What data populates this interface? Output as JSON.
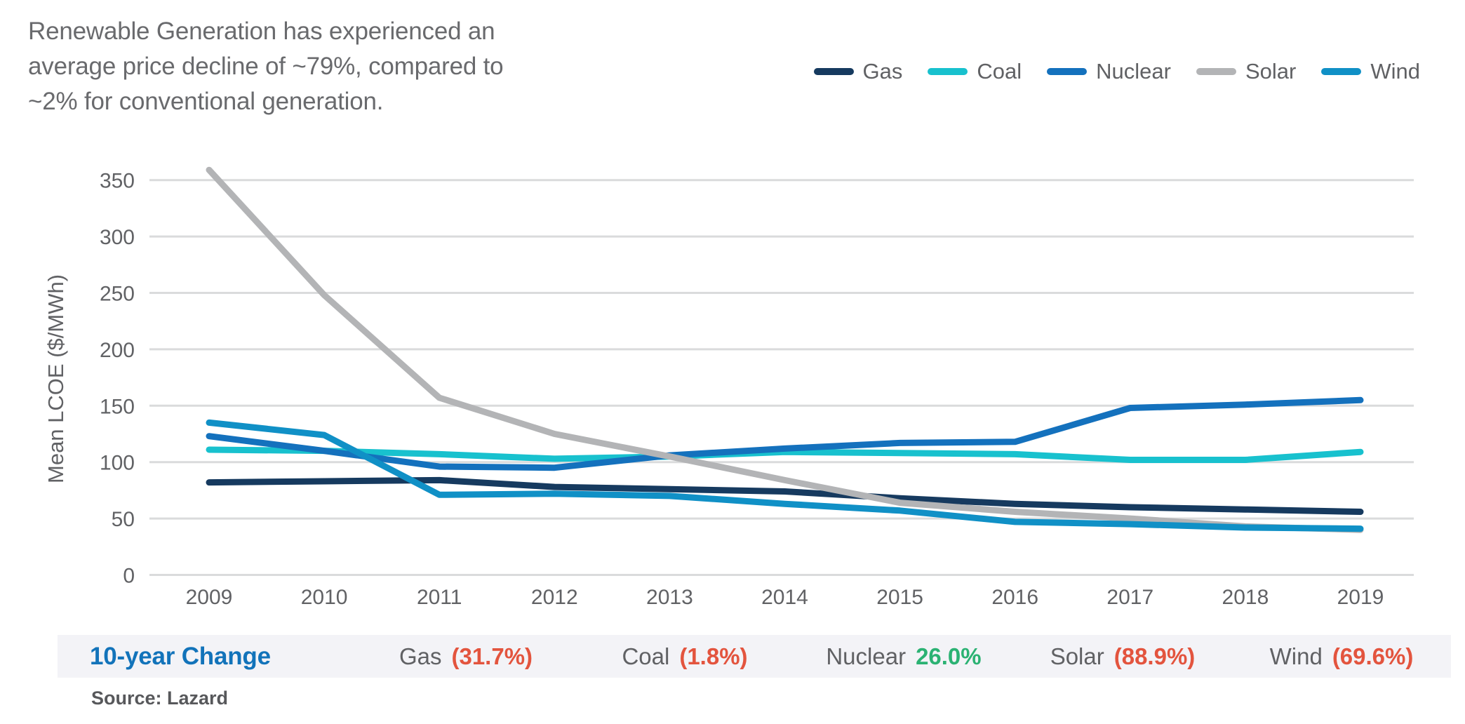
{
  "headline": {
    "lines": [
      "Renewable Generation has experienced an",
      "average price decline of ~79%, compared to",
      "~2% for conventional generation."
    ]
  },
  "chart_data": {
    "type": "line",
    "x": [
      2009,
      2010,
      2011,
      2012,
      2013,
      2014,
      2015,
      2016,
      2017,
      2018,
      2019
    ],
    "ylabel": "Mean LCOE ($/MWh)",
    "yticks": [
      0,
      50,
      100,
      150,
      200,
      250,
      300,
      350
    ],
    "ylim": [
      0,
      375
    ],
    "grid": true,
    "legend_position": "top-right",
    "series": [
      {
        "name": "Gas",
        "color": "#163a5f",
        "values": [
          82,
          83,
          84,
          78,
          76,
          74,
          68,
          63,
          60,
          58,
          56
        ]
      },
      {
        "name": "Coal",
        "color": "#18c1ce",
        "values": [
          111,
          110,
          107,
          103,
          105,
          109,
          108,
          107,
          102,
          102,
          109
        ]
      },
      {
        "name": "Nuclear",
        "color": "#1471bd",
        "values": [
          123,
          110,
          96,
          95,
          106,
          112,
          117,
          118,
          148,
          151,
          155
        ]
      },
      {
        "name": "Solar",
        "color": "#b3b4b6",
        "values": [
          359,
          248,
          157,
          125,
          105,
          84,
          64,
          56,
          50,
          43,
          40
        ]
      },
      {
        "name": "Wind",
        "color": "#1090c6",
        "values": [
          135,
          124,
          71,
          72,
          70,
          63,
          57,
          47,
          45,
          42,
          41
        ]
      }
    ]
  },
  "footer": {
    "heading": "10-year Change",
    "items": [
      {
        "label": "Gas",
        "value": "(31.7%)",
        "direction": "down"
      },
      {
        "label": "Coal",
        "value": "(1.8%)",
        "direction": "down"
      },
      {
        "label": "Nuclear",
        "value": "26.0%",
        "direction": "up"
      },
      {
        "label": "Solar",
        "value": "(88.9%)",
        "direction": "down"
      },
      {
        "label": "Wind",
        "value": "(69.6%)",
        "direction": "down"
      }
    ],
    "source": "Source: Lazard"
  },
  "colors": {
    "negative_red": "#e3543e",
    "positive_green": "#2bb273",
    "heading_blue": "#1273ba",
    "grid_line": "#dadbdc",
    "tick_text": "#616265",
    "footer_bg": "#f3f3f7"
  }
}
